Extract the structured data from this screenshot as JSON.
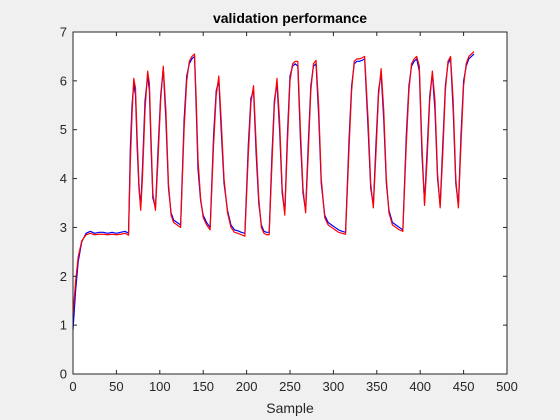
{
  "chart_data": {
    "type": "line",
    "title": "validation performance",
    "xlabel": "Sample",
    "ylabel": "",
    "xlim": [
      0,
      500
    ],
    "ylim": [
      0,
      7
    ],
    "xticks": [
      0,
      50,
      100,
      150,
      200,
      250,
      300,
      350,
      400,
      450,
      500
    ],
    "yticks": [
      0,
      1,
      2,
      3,
      4,
      5,
      6,
      7
    ],
    "grid": false,
    "legend": "none",
    "series": [
      {
        "color": "#0000ff",
        "points": [
          [
            0,
            0.9
          ],
          [
            3,
            1.7
          ],
          [
            6,
            2.3
          ],
          [
            10,
            2.7
          ],
          [
            15,
            2.88
          ],
          [
            20,
            2.92
          ],
          [
            25,
            2.88
          ],
          [
            30,
            2.9
          ],
          [
            35,
            2.9
          ],
          [
            40,
            2.88
          ],
          [
            45,
            2.9
          ],
          [
            50,
            2.88
          ],
          [
            55,
            2.9
          ],
          [
            60,
            2.92
          ],
          [
            62,
            2.9
          ],
          [
            64,
            2.88
          ],
          [
            66,
            4.6
          ],
          [
            68,
            5.5
          ],
          [
            70,
            5.95
          ],
          [
            72,
            5.7
          ],
          [
            74,
            4.6
          ],
          [
            76,
            3.8
          ],
          [
            78,
            3.4
          ],
          [
            80,
            4.2
          ],
          [
            83,
            5.6
          ],
          [
            86,
            6.1
          ],
          [
            88,
            5.8
          ],
          [
            90,
            4.6
          ],
          [
            92,
            3.6
          ],
          [
            95,
            3.4
          ],
          [
            98,
            4.6
          ],
          [
            101,
            5.7
          ],
          [
            104,
            6.25
          ],
          [
            107,
            5.2
          ],
          [
            110,
            3.8
          ],
          [
            113,
            3.3
          ],
          [
            116,
            3.15
          ],
          [
            120,
            3.1
          ],
          [
            124,
            3.05
          ],
          [
            128,
            5.2
          ],
          [
            131,
            6.1
          ],
          [
            134,
            6.35
          ],
          [
            137,
            6.45
          ],
          [
            140,
            6.5
          ],
          [
            142,
            5.4
          ],
          [
            144,
            4.2
          ],
          [
            147,
            3.55
          ],
          [
            150,
            3.25
          ],
          [
            154,
            3.1
          ],
          [
            158,
            3.0
          ],
          [
            162,
            4.9
          ],
          [
            165,
            5.8
          ],
          [
            168,
            6.0
          ],
          [
            171,
            4.9
          ],
          [
            174,
            3.9
          ],
          [
            178,
            3.35
          ],
          [
            182,
            3.05
          ],
          [
            186,
            2.95
          ],
          [
            190,
            2.93
          ],
          [
            194,
            2.9
          ],
          [
            198,
            2.88
          ],
          [
            202,
            4.7
          ],
          [
            205,
            5.65
          ],
          [
            208,
            5.8
          ],
          [
            211,
            4.5
          ],
          [
            214,
            3.5
          ],
          [
            217,
            3.05
          ],
          [
            220,
            2.92
          ],
          [
            223,
            2.9
          ],
          [
            226,
            2.9
          ],
          [
            229,
            4.4
          ],
          [
            232,
            5.6
          ],
          [
            235,
            5.95
          ],
          [
            238,
            5.0
          ],
          [
            241,
            3.7
          ],
          [
            244,
            3.3
          ],
          [
            247,
            4.9
          ],
          [
            250,
            6.1
          ],
          [
            253,
            6.3
          ],
          [
            256,
            6.35
          ],
          [
            259,
            6.3
          ],
          [
            262,
            4.8
          ],
          [
            265,
            3.7
          ],
          [
            268,
            3.35
          ],
          [
            271,
            4.7
          ],
          [
            274,
            5.9
          ],
          [
            277,
            6.3
          ],
          [
            280,
            6.35
          ],
          [
            283,
            5.3
          ],
          [
            286,
            3.9
          ],
          [
            290,
            3.25
          ],
          [
            294,
            3.1
          ],
          [
            298,
            3.05
          ],
          [
            302,
            3.0
          ],
          [
            306,
            2.95
          ],
          [
            310,
            2.92
          ],
          [
            314,
            2.9
          ],
          [
            318,
            4.8
          ],
          [
            321,
            5.9
          ],
          [
            324,
            6.35
          ],
          [
            327,
            6.4
          ],
          [
            330,
            6.4
          ],
          [
            333,
            6.42
          ],
          [
            336,
            6.45
          ],
          [
            340,
            5.0
          ],
          [
            343,
            3.8
          ],
          [
            346,
            3.45
          ],
          [
            349,
            4.7
          ],
          [
            352,
            5.8
          ],
          [
            355,
            6.15
          ],
          [
            358,
            5.2
          ],
          [
            361,
            3.9
          ],
          [
            364,
            3.35
          ],
          [
            368,
            3.1
          ],
          [
            372,
            3.05
          ],
          [
            376,
            3.0
          ],
          [
            380,
            2.95
          ],
          [
            384,
            4.9
          ],
          [
            387,
            5.9
          ],
          [
            390,
            6.3
          ],
          [
            393,
            6.4
          ],
          [
            396,
            6.45
          ],
          [
            399,
            6.2
          ],
          [
            402,
            4.5
          ],
          [
            405,
            3.5
          ],
          [
            408,
            4.6
          ],
          [
            411,
            5.7
          ],
          [
            414,
            6.15
          ],
          [
            417,
            5.4
          ],
          [
            420,
            4.0
          ],
          [
            423,
            3.45
          ],
          [
            426,
            4.7
          ],
          [
            429,
            5.9
          ],
          [
            432,
            6.35
          ],
          [
            435,
            6.45
          ],
          [
            438,
            5.4
          ],
          [
            441,
            3.9
          ],
          [
            444,
            3.45
          ],
          [
            447,
            4.9
          ],
          [
            450,
            6.0
          ],
          [
            453,
            6.3
          ],
          [
            456,
            6.45
          ],
          [
            459,
            6.5
          ],
          [
            462,
            6.55
          ]
        ]
      },
      {
        "color": "#ff0000",
        "points": [
          [
            0,
            1.2
          ],
          [
            3,
            1.9
          ],
          [
            6,
            2.4
          ],
          [
            10,
            2.72
          ],
          [
            15,
            2.85
          ],
          [
            20,
            2.88
          ],
          [
            25,
            2.85
          ],
          [
            30,
            2.86
          ],
          [
            35,
            2.86
          ],
          [
            40,
            2.85
          ],
          [
            45,
            2.86
          ],
          [
            50,
            2.85
          ],
          [
            55,
            2.86
          ],
          [
            60,
            2.88
          ],
          [
            62,
            2.86
          ],
          [
            64,
            2.84
          ],
          [
            66,
            4.3
          ],
          [
            68,
            5.3
          ],
          [
            70,
            6.05
          ],
          [
            72,
            5.85
          ],
          [
            74,
            4.8
          ],
          [
            76,
            3.9
          ],
          [
            78,
            3.35
          ],
          [
            80,
            4.0
          ],
          [
            83,
            5.4
          ],
          [
            86,
            6.2
          ],
          [
            88,
            5.95
          ],
          [
            90,
            4.8
          ],
          [
            92,
            3.7
          ],
          [
            95,
            3.35
          ],
          [
            98,
            4.4
          ],
          [
            101,
            5.6
          ],
          [
            104,
            6.3
          ],
          [
            107,
            5.4
          ],
          [
            110,
            3.9
          ],
          [
            113,
            3.25
          ],
          [
            116,
            3.1
          ],
          [
            120,
            3.05
          ],
          [
            124,
            3.0
          ],
          [
            128,
            5.0
          ],
          [
            131,
            6.0
          ],
          [
            134,
            6.4
          ],
          [
            137,
            6.5
          ],
          [
            140,
            6.55
          ],
          [
            142,
            5.6
          ],
          [
            144,
            4.4
          ],
          [
            147,
            3.6
          ],
          [
            150,
            3.2
          ],
          [
            154,
            3.05
          ],
          [
            158,
            2.95
          ],
          [
            162,
            4.7
          ],
          [
            165,
            5.7
          ],
          [
            168,
            6.1
          ],
          [
            171,
            5.1
          ],
          [
            174,
            4.0
          ],
          [
            178,
            3.3
          ],
          [
            182,
            3.0
          ],
          [
            186,
            2.9
          ],
          [
            190,
            2.88
          ],
          [
            194,
            2.85
          ],
          [
            198,
            2.82
          ],
          [
            202,
            4.5
          ],
          [
            205,
            5.55
          ],
          [
            208,
            5.9
          ],
          [
            211,
            4.7
          ],
          [
            214,
            3.6
          ],
          [
            217,
            3.0
          ],
          [
            220,
            2.88
          ],
          [
            223,
            2.85
          ],
          [
            226,
            2.85
          ],
          [
            229,
            4.2
          ],
          [
            232,
            5.5
          ],
          [
            235,
            6.05
          ],
          [
            238,
            5.2
          ],
          [
            241,
            3.8
          ],
          [
            244,
            3.25
          ],
          [
            247,
            4.7
          ],
          [
            250,
            6.0
          ],
          [
            253,
            6.35
          ],
          [
            256,
            6.4
          ],
          [
            259,
            6.4
          ],
          [
            262,
            5.0
          ],
          [
            265,
            3.8
          ],
          [
            268,
            3.3
          ],
          [
            271,
            4.5
          ],
          [
            274,
            5.8
          ],
          [
            277,
            6.35
          ],
          [
            280,
            6.42
          ],
          [
            283,
            5.5
          ],
          [
            286,
            4.0
          ],
          [
            290,
            3.2
          ],
          [
            294,
            3.05
          ],
          [
            298,
            3.0
          ],
          [
            302,
            2.95
          ],
          [
            306,
            2.9
          ],
          [
            310,
            2.88
          ],
          [
            314,
            2.86
          ],
          [
            318,
            4.6
          ],
          [
            321,
            5.8
          ],
          [
            324,
            6.4
          ],
          [
            327,
            6.45
          ],
          [
            330,
            6.45
          ],
          [
            333,
            6.47
          ],
          [
            336,
            6.5
          ],
          [
            340,
            5.2
          ],
          [
            343,
            3.9
          ],
          [
            346,
            3.4
          ],
          [
            349,
            4.5
          ],
          [
            352,
            5.7
          ],
          [
            355,
            6.25
          ],
          [
            358,
            5.4
          ],
          [
            361,
            4.0
          ],
          [
            364,
            3.3
          ],
          [
            368,
            3.05
          ],
          [
            372,
            3.0
          ],
          [
            376,
            2.95
          ],
          [
            380,
            2.92
          ],
          [
            384,
            4.7
          ],
          [
            387,
            5.8
          ],
          [
            390,
            6.35
          ],
          [
            393,
            6.45
          ],
          [
            396,
            6.5
          ],
          [
            399,
            6.3
          ],
          [
            402,
            4.7
          ],
          [
            405,
            3.45
          ],
          [
            408,
            4.4
          ],
          [
            411,
            5.6
          ],
          [
            414,
            6.2
          ],
          [
            417,
            5.6
          ],
          [
            420,
            4.1
          ],
          [
            423,
            3.4
          ],
          [
            426,
            4.5
          ],
          [
            429,
            5.8
          ],
          [
            432,
            6.4
          ],
          [
            435,
            6.5
          ],
          [
            438,
            5.6
          ],
          [
            441,
            4.0
          ],
          [
            444,
            3.4
          ],
          [
            447,
            4.7
          ],
          [
            450,
            5.9
          ],
          [
            453,
            6.35
          ],
          [
            456,
            6.5
          ],
          [
            459,
            6.55
          ],
          [
            462,
            6.6
          ]
        ]
      }
    ]
  }
}
